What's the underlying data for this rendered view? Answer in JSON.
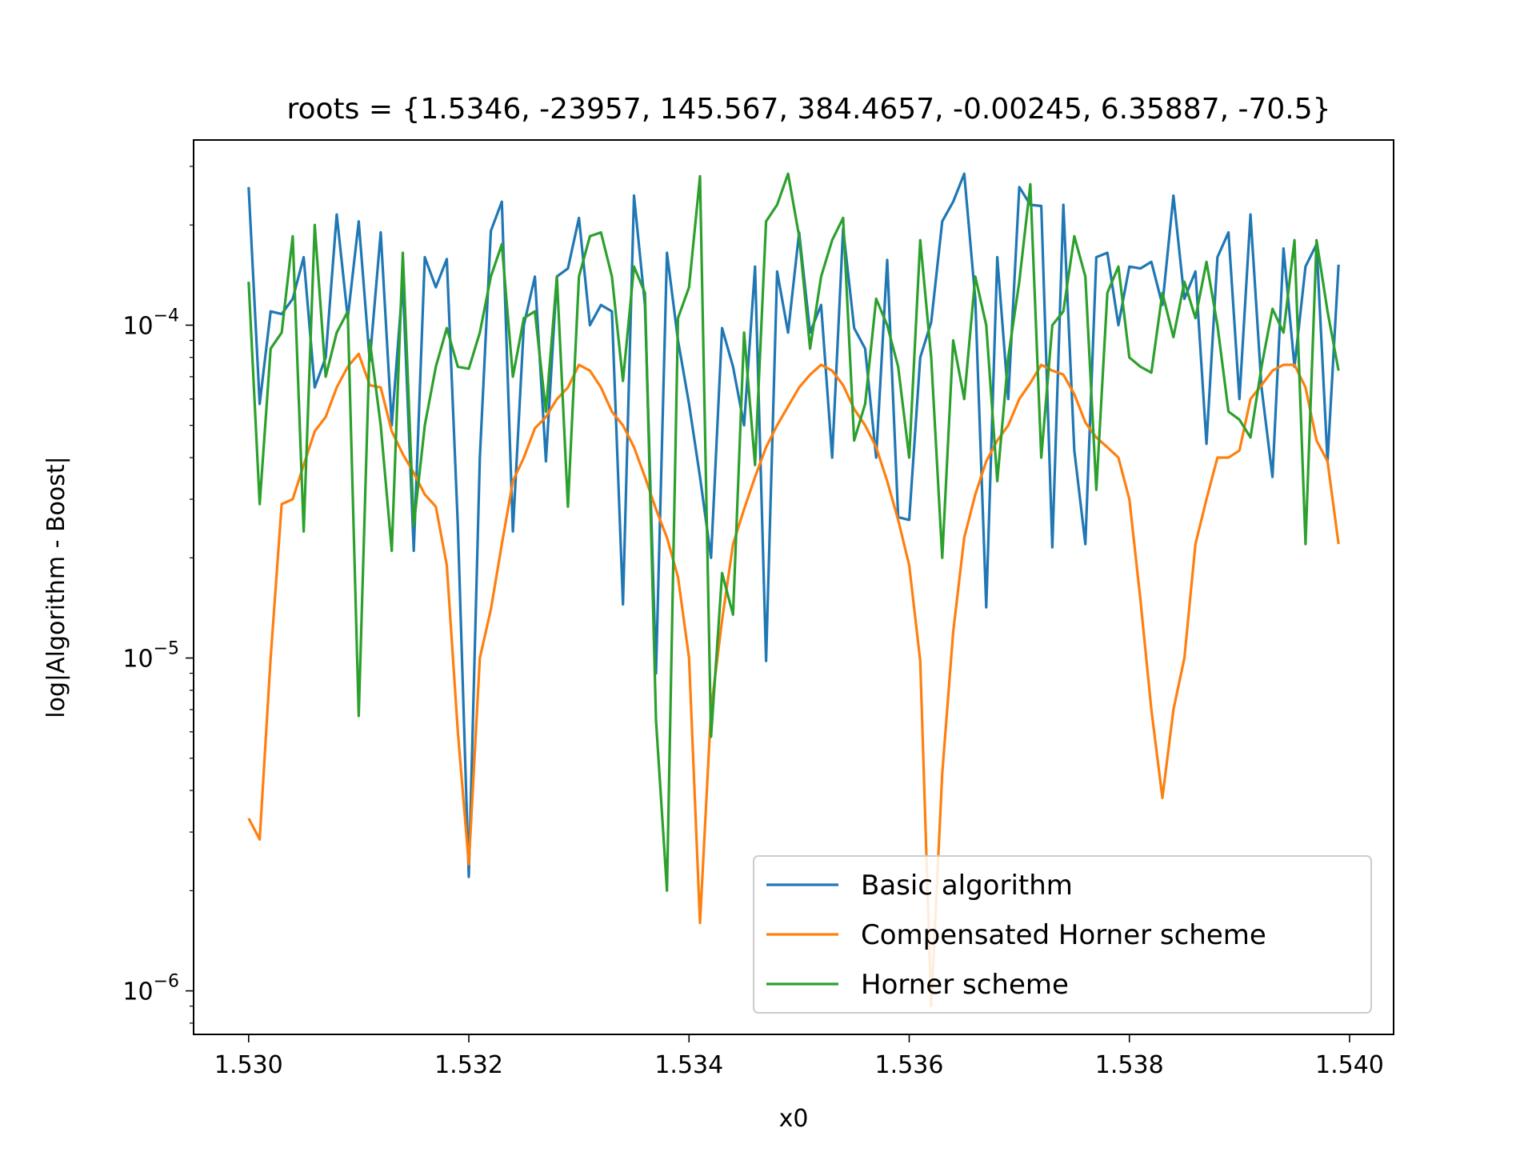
{
  "chart_data": {
    "type": "line",
    "title": "roots = {1.5346, -23957, 145.567, 384.4657, -0.00245, 6.35887, -70.5}",
    "xlabel": "x0",
    "ylabel": "log|Algorithm - Boost|",
    "yscale": "log",
    "xlim": [
      1.5295,
      1.5404
    ],
    "ylim": [
      7.4e-07,
      0.00036
    ],
    "xticks": [
      1.53,
      1.532,
      1.534,
      1.536,
      1.538,
      1.54
    ],
    "xtick_labels": [
      "1.530",
      "1.532",
      "1.534",
      "1.536",
      "1.538",
      "1.540"
    ],
    "yticks": [
      1e-06,
      1e-05,
      0.0001
    ],
    "ytick_labels": [
      {
        "base": "10",
        "exp": "−6"
      },
      {
        "base": "10",
        "exp": "−5"
      },
      {
        "base": "10",
        "exp": "−4"
      }
    ],
    "grid": false,
    "legend_position": "lower-right",
    "x": {
      "start": 1.53,
      "step": 0.0001,
      "count": 100
    },
    "series": [
      {
        "name": "Basic algorithm",
        "color": "#1f77b4",
        "values": [
          0.00026,
          5.8e-05,
          0.00011,
          0.000108,
          0.00012,
          0.00016,
          6.5e-05,
          8e-05,
          0.000215,
          0.000105,
          0.000205,
          7.8e-05,
          0.00019,
          5e-05,
          0.000135,
          2.1e-05,
          0.00016,
          0.00013,
          0.000158,
          2.5e-05,
          2.2e-06,
          4e-05,
          0.000192,
          0.000235,
          2.4e-05,
          0.0001,
          0.00014,
          3.9e-05,
          0.00014,
          0.000148,
          0.00021,
          0.0001,
          0.000115,
          0.00011,
          1.45e-05,
          0.000245,
          0.000115,
          9e-06,
          0.000165,
          9e-05,
          5.8e-05,
          3.5e-05,
          2e-05,
          9.8e-05,
          7.5e-05,
          5e-05,
          0.00015,
          9.8e-06,
          0.000145,
          9.5e-05,
          0.00019,
          9.5e-05,
          0.000115,
          4e-05,
          0.000195,
          9.8e-05,
          8.5e-05,
          4e-05,
          0.000157,
          2.65e-05,
          2.6e-05,
          8e-05,
          0.000102,
          0.000205,
          0.000235,
          0.000285,
          0.00012,
          1.42e-05,
          0.00016,
          6e-05,
          0.00026,
          0.00023,
          0.000228,
          2.15e-05,
          0.00023,
          4.2e-05,
          2.2e-05,
          0.00016,
          0.000165,
          0.0001,
          0.00015,
          0.000148,
          0.000155,
          0.000115,
          0.000245,
          0.00012,
          0.000145,
          4.4e-05,
          0.00016,
          0.00019,
          6e-05,
          0.000215,
          6.5e-05,
          3.5e-05,
          0.00017,
          7.5e-05,
          0.00015,
          0.000175,
          3.9e-05,
          0.000152
        ]
      },
      {
        "name": "Compensated Horner scheme",
        "color": "#ff7f0e",
        "values": [
          3.3e-06,
          2.85e-06,
          1e-05,
          2.9e-05,
          3e-05,
          3.8e-05,
          4.8e-05,
          5.3e-05,
          6.5e-05,
          7.5e-05,
          8.2e-05,
          6.6e-05,
          6.5e-05,
          4.8e-05,
          4.1e-05,
          3.6e-05,
          3.1e-05,
          2.85e-05,
          1.9e-05,
          6e-06,
          2.4e-06,
          1e-05,
          1.4e-05,
          2.2e-05,
          3.4e-05,
          4e-05,
          4.9e-05,
          5.3e-05,
          6e-05,
          6.5e-05,
          7.6e-05,
          7.3e-05,
          6.5e-05,
          5.5e-05,
          5e-05,
          4.3e-05,
          3.5e-05,
          2.8e-05,
          2.3e-05,
          1.75e-05,
          1e-05,
          1.6e-06,
          7e-06,
          1.3e-05,
          2.2e-05,
          2.8e-05,
          3.5e-05,
          4.3e-05,
          5e-05,
          5.7e-05,
          6.5e-05,
          7.1e-05,
          7.6e-05,
          7.3e-05,
          6.6e-05,
          5.6e-05,
          5e-05,
          4.3e-05,
          3.4e-05,
          2.6e-05,
          1.9e-05,
          9.8e-06,
          9e-07,
          4.5e-06,
          1.2e-05,
          2.3e-05,
          3.1e-05,
          3.9e-05,
          4.5e-05,
          5e-05,
          6e-05,
          6.7e-05,
          7.6e-05,
          7.3e-05,
          7.1e-05,
          6.2e-05,
          5.1e-05,
          4.6e-05,
          4.3e-05,
          4e-05,
          3e-05,
          1.5e-05,
          7e-06,
          3.8e-06,
          7e-06,
          1e-05,
          2.2e-05,
          3e-05,
          4e-05,
          4e-05,
          4.2e-05,
          6e-05,
          6.6e-05,
          7.3e-05,
          7.6e-05,
          7.6e-05,
          6.5e-05,
          4.5e-05,
          3.9e-05,
          2.2e-05
        ]
      },
      {
        "name": "Horner scheme",
        "color": "#2ca02c",
        "values": [
          0.000135,
          2.9e-05,
          8.5e-05,
          9.5e-05,
          0.000185,
          2.4e-05,
          0.0002,
          7e-05,
          9.5e-05,
          0.00011,
          6.7e-06,
          9e-05,
          5e-05,
          2.1e-05,
          0.000165,
          2.5e-05,
          5e-05,
          7.5e-05,
          9.8e-05,
          7.5e-05,
          7.4e-05,
          9.5e-05,
          0.00014,
          0.000175,
          7e-05,
          0.000105,
          0.00011,
          5.5e-05,
          0.00014,
          2.85e-05,
          0.00014,
          0.000185,
          0.00019,
          0.00014,
          6.8e-05,
          0.00015,
          0.000125,
          6.5e-06,
          2e-06,
          0.000105,
          0.00013,
          0.00028,
          5.8e-06,
          1.8e-05,
          1.35e-05,
          9.5e-05,
          3.8e-05,
          0.000205,
          0.00023,
          0.000285,
          0.000185,
          8.5e-05,
          0.00014,
          0.00018,
          0.00021,
          4.5e-05,
          5.8e-05,
          0.00012,
          0.0001,
          7.5e-05,
          4e-05,
          0.00018,
          8e-05,
          2e-05,
          9e-05,
          6e-05,
          0.00014,
          0.0001,
          3.4e-05,
          8e-05,
          0.000135,
          0.000265,
          4e-05,
          0.0001,
          0.00011,
          0.000185,
          0.00014,
          3.2e-05,
          0.000125,
          0.00015,
          8e-05,
          7.5e-05,
          7.2e-05,
          0.000125,
          9.2e-05,
          0.000135,
          0.000105,
          0.000155,
          0.0001,
          5.5e-05,
          5.2e-05,
          4.6e-05,
          7.5e-05,
          0.000112,
          9.5e-05,
          0.00018,
          2.2e-05,
          0.00018,
          0.00011,
          7.3e-05
        ]
      }
    ]
  }
}
